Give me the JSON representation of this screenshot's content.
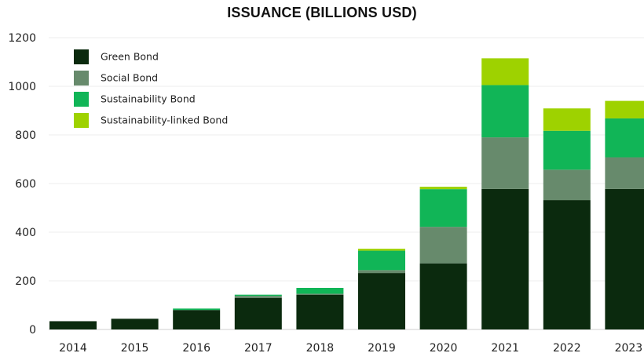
{
  "chart_data": {
    "type": "bar",
    "stacked": true,
    "title": "ISSUANCE (BILLIONS USD)",
    "xlabel": "",
    "ylabel": "",
    "ylim": [
      0,
      1200
    ],
    "yticks": [
      0,
      200,
      400,
      600,
      800,
      1000,
      1200
    ],
    "grid": true,
    "legend_position": "top-left",
    "categories": [
      "2014",
      "2015",
      "2016",
      "2017",
      "2018",
      "2019",
      "2020",
      "2021",
      "2022",
      "2023"
    ],
    "series": [
      {
        "name": "Green Bond",
        "color": "#0b2a0e",
        "values": [
          34,
          44,
          80,
          130,
          143,
          232,
          272,
          578,
          532,
          578
        ]
      },
      {
        "name": "Social Bond",
        "color": "#678a6c",
        "values": [
          0,
          0,
          0,
          8,
          4,
          12,
          150,
          212,
          125,
          130
        ]
      },
      {
        "name": "Sustainability Bond",
        "color": "#11b557",
        "values": [
          0,
          0,
          6,
          5,
          24,
          80,
          155,
          215,
          160,
          160
        ]
      },
      {
        "name": "Sustainability-linked Bond",
        "color": "#9ed200",
        "values": [
          0,
          0,
          0,
          0,
          0,
          8,
          10,
          110,
          92,
          72
        ]
      }
    ]
  }
}
